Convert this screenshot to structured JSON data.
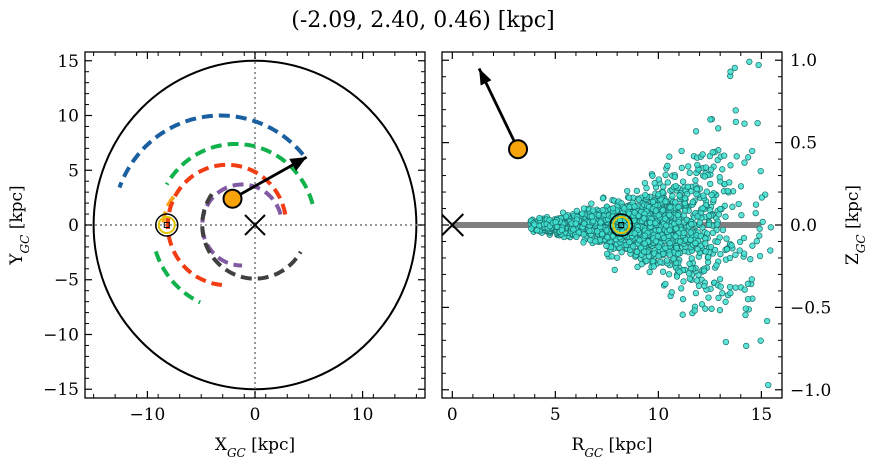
{
  "chart_data": [
    {
      "type": "scatter",
      "panel": "galactic-plane-top-view",
      "title": "(-2.09, 2.40, 0.46) [kpc]",
      "xlabel": "X_GC [kpc]",
      "ylabel": "Y_GC [kpc]",
      "xlim": [
        -15.8,
        15.8
      ],
      "ylim": [
        -15.8,
        15.8
      ],
      "xticks": [
        -10,
        0,
        10
      ],
      "xtick_labels": [
        "−10",
        "0",
        "10"
      ],
      "yticks": [
        -15,
        -10,
        -5,
        0,
        5,
        10,
        15
      ],
      "ytick_labels": [
        "−15",
        "−10",
        "−5",
        "0",
        "5",
        "10",
        "15"
      ],
      "grid": false,
      "boundary_circle_radius": 15,
      "galactic_center": [
        0,
        0
      ],
      "sun_position": [
        -8.2,
        0
      ],
      "object_position": [
        -2.09,
        2.4
      ],
      "velocity_arrow_end": [
        4.8,
        6.2
      ],
      "spiral_arms": [
        {
          "color": "#1a5fa0",
          "radius": 10.0,
          "theta_range_deg": [
            40,
            160
          ],
          "center": [
            -3.2,
            0
          ]
        },
        {
          "color": "#11b14b",
          "radius": 7.4,
          "theta_range_deg": [
            15,
            150
          ],
          "center": [
            -1.8,
            0
          ]
        },
        {
          "color": "#11b14b",
          "radius": 7.8,
          "theta_range_deg": [
            198,
            245
          ],
          "center": [
            -1.8,
            0
          ]
        },
        {
          "color": "#f9a51a",
          "radius": 4.0,
          "theta_range_deg": [
            140,
            180
          ],
          "center": [
            -4.5,
            0
          ]
        },
        {
          "color": "#f23c12",
          "radius": 5.5,
          "theta_range_deg": [
            10,
            265
          ],
          "center": [
            -2.6,
            0
          ]
        },
        {
          "color": "#815aa3",
          "radius": 3.7,
          "theta_range_deg": [
            15,
            270
          ],
          "center": [
            -1.2,
            0
          ]
        },
        {
          "color": "#404040",
          "radius": 4.9,
          "theta_range_deg": [
            145,
            330
          ],
          "center": [
            0,
            0
          ]
        }
      ]
    },
    {
      "type": "scatter",
      "panel": "galactic-plane-side-view",
      "xlabel": "R_GC [kpc]",
      "ylabel": "Z_GC [kpc]",
      "xlim": [
        -0.5,
        16.0
      ],
      "ylim": [
        -1.05,
        1.05
      ],
      "xticks": [
        0,
        5,
        10,
        15
      ],
      "xtick_labels": [
        "0",
        "5",
        "10",
        "15"
      ],
      "yticks": [
        -1.0,
        -0.5,
        0.0,
        0.5,
        1.0
      ],
      "ytick_labels": [
        "−1.0",
        "−0.5",
        "0.0",
        "0.5",
        "1.0"
      ],
      "grid": false,
      "disk_line": {
        "x": [
          0,
          15
        ],
        "y": 0
      },
      "galactic_center": [
        0,
        0
      ],
      "sun_position": [
        8.2,
        0
      ],
      "object_position": [
        3.19,
        0.46
      ],
      "velocity_arrow_end": [
        1.3,
        0.95
      ],
      "stars_color": "#3fe0d0",
      "stars_edge_color": "#1a6e6a",
      "star_count": 1800,
      "star_distribution": {
        "r_mean": 8.8,
        "r_sd": 2.6,
        "z_sd_base": 0.07
      }
    }
  ],
  "colors": {
    "object_marker": "#f7a30a",
    "sun_marker": "#e3c400",
    "axis": "#000000",
    "disk_line": "#808080"
  }
}
